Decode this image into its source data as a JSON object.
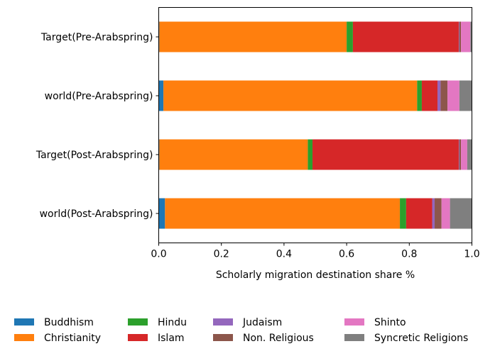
{
  "chart_data": {
    "type": "bar",
    "orientation": "horizontal",
    "stacked": true,
    "title": "",
    "xlabel": "Scholarly migration destination share %",
    "ylabel": "",
    "xlim": [
      0,
      1.0
    ],
    "x_ticks": [
      "0.0",
      "0.2",
      "0.4",
      "0.6",
      "0.8",
      "1.0"
    ],
    "grid": false,
    "legend_position": "bottom",
    "categories": [
      "Target(Pre-Arabspring)",
      "world(Pre-Arabspring)",
      "Target(Post-Arabspring)",
      "world(Post-Arabspring)"
    ],
    "series": [
      {
        "name": "Buddhism",
        "color": "#1f77b4",
        "values": [
          0.002,
          0.015,
          0.002,
          0.02
        ]
      },
      {
        "name": "Christianity",
        "color": "#ff7f0e",
        "values": [
          0.598,
          0.81,
          0.474,
          0.75
        ]
      },
      {
        "name": "Hindu",
        "color": "#2ca02c",
        "values": [
          0.02,
          0.015,
          0.015,
          0.02
        ]
      },
      {
        "name": "Islam",
        "color": "#d62728",
        "values": [
          0.338,
          0.05,
          0.467,
          0.083
        ]
      },
      {
        "name": "Judaism",
        "color": "#9467bd",
        "values": [
          0.002,
          0.01,
          0.002,
          0.008
        ]
      },
      {
        "name": "Non. Religious",
        "color": "#8c564b",
        "values": [
          0.005,
          0.022,
          0.005,
          0.022
        ]
      },
      {
        "name": "Shinto",
        "color": "#e377c2",
        "values": [
          0.03,
          0.038,
          0.02,
          0.027
        ]
      },
      {
        "name": "Syncretic Religions",
        "color": "#7f7f7f",
        "values": [
          0.005,
          0.04,
          0.015,
          0.07
        ]
      }
    ]
  }
}
